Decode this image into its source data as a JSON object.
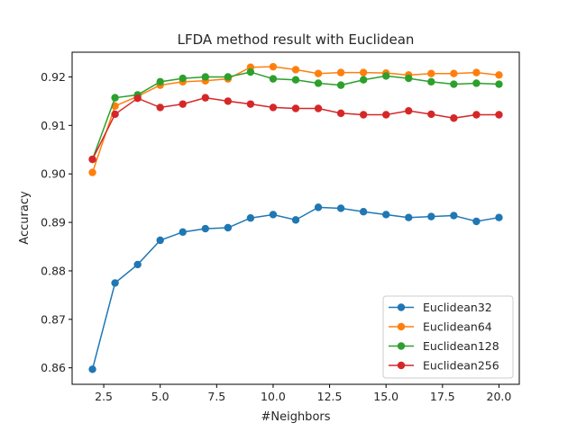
{
  "chart_data": {
    "type": "line",
    "title": "LFDA method result with Euclidean",
    "xlabel": "#Neighbors",
    "ylabel": "Accuracy",
    "xlim": [
      1.1,
      20.9
    ],
    "ylim": [
      0.8566,
      0.9251
    ],
    "x_ticks": [
      2.5,
      5.0,
      7.5,
      10.0,
      12.5,
      15.0,
      17.5,
      20.0
    ],
    "x_tick_labels": [
      "2.5",
      "5.0",
      "7.5",
      "10.0",
      "12.5",
      "15.0",
      "17.5",
      "20.0"
    ],
    "y_ticks": [
      0.86,
      0.87,
      0.88,
      0.89,
      0.9,
      0.91,
      0.92
    ],
    "y_tick_labels": [
      "0.86",
      "0.87",
      "0.88",
      "0.89",
      "0.90",
      "0.91",
      "0.92"
    ],
    "legend_position": "lower-right",
    "grid": false,
    "x": [
      2,
      3,
      4,
      5,
      6,
      7,
      8,
      9,
      10,
      11,
      12,
      13,
      14,
      15,
      16,
      17,
      18,
      19,
      20
    ],
    "series": [
      {
        "name": "Euclidean32",
        "color": "#1f77b4",
        "values": [
          0.8597,
          0.8775,
          0.8813,
          0.8863,
          0.888,
          0.8887,
          0.8889,
          0.8909,
          0.8916,
          0.8905,
          0.8931,
          0.8929,
          0.8922,
          0.8916,
          0.891,
          0.8912,
          0.8914,
          0.8902,
          0.891
        ]
      },
      {
        "name": "Euclidean64",
        "color": "#ff7f0e",
        "values": [
          0.9003,
          0.914,
          0.916,
          0.9183,
          0.919,
          0.9192,
          0.9196,
          0.922,
          0.9221,
          0.9215,
          0.9207,
          0.9209,
          0.9209,
          0.9208,
          0.9204,
          0.9207,
          0.9207,
          0.9209,
          0.9204
        ]
      },
      {
        "name": "Euclidean128",
        "color": "#2ca02c",
        "values": [
          0.903,
          0.9157,
          0.9163,
          0.919,
          0.9197,
          0.92,
          0.92,
          0.921,
          0.9196,
          0.9194,
          0.9187,
          0.9183,
          0.9194,
          0.9202,
          0.9197,
          0.919,
          0.9185,
          0.9187,
          0.9185
        ]
      },
      {
        "name": "Euclidean256",
        "color": "#d62728",
        "values": [
          0.903,
          0.9123,
          0.9156,
          0.9137,
          0.9144,
          0.9157,
          0.915,
          0.9144,
          0.9137,
          0.9135,
          0.9135,
          0.9125,
          0.9122,
          0.9122,
          0.913,
          0.9123,
          0.9115,
          0.9122,
          0.9122
        ]
      }
    ]
  }
}
